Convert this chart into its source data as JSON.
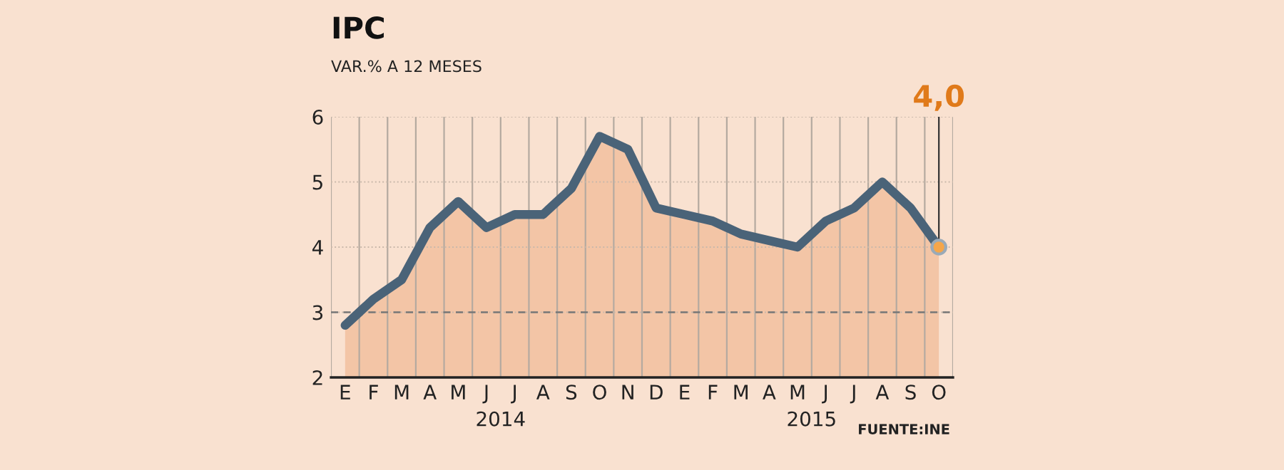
{
  "chart_data": {
    "type": "area",
    "title": "IPC",
    "subtitle": "VAR.% A 12 MESES",
    "categories": [
      "E",
      "F",
      "M",
      "A",
      "M",
      "J",
      "J",
      "A",
      "S",
      "O",
      "N",
      "D",
      "E",
      "F",
      "M",
      "A",
      "M",
      "J",
      "J",
      "A",
      "S",
      "O"
    ],
    "series": [
      {
        "color": "#f3c5a6",
        "values": [
          2.8,
          3.2,
          3.5,
          4.3,
          4.7,
          4.3,
          4.5,
          4.5,
          4.9,
          5.7,
          5.5,
          4.6,
          4.5,
          4.4,
          4.2,
          4.1,
          4.0,
          4.4,
          4.6,
          5.0,
          4.6,
          4.0
        ]
      },
      {
        "type": "line",
        "color": "#4a6378",
        "values": [
          2.8,
          3.2,
          3.5,
          4.3,
          4.7,
          4.3,
          4.5,
          4.5,
          4.9,
          5.7,
          5.5,
          4.6,
          4.5,
          4.4,
          4.2,
          4.1,
          4.0,
          4.4,
          4.6,
          5.0,
          4.6,
          4.0
        ],
        "value_labels": [
          null,
          null,
          null,
          null,
          null,
          null,
          null,
          null,
          null,
          null,
          null,
          null,
          null,
          null,
          null,
          null,
          null,
          null,
          null,
          null,
          null,
          "4,0"
        ]
      }
    ],
    "ylim": [
      2,
      6
    ],
    "yticks": [
      2,
      3,
      4,
      5,
      6
    ],
    "grid": true,
    "ref_lines": [
      {
        "axis": "y",
        "value": 3,
        "color": "#777777",
        "line_style": "dashed"
      }
    ],
    "annotations": [
      "2014",
      "2015",
      "FUENTE:INE"
    ]
  }
}
